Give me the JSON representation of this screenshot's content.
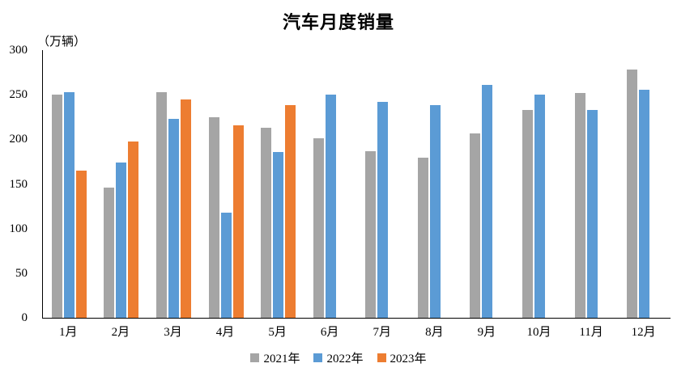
{
  "title": "汽车月度销量",
  "axis_unit_label": "（万辆）",
  "legend": [
    {
      "label": "2021年",
      "color": "#A5A5A5"
    },
    {
      "label": "2022年",
      "color": "#5B9BD5"
    },
    {
      "label": "2023年",
      "color": "#ED7D31"
    }
  ],
  "chart_data": {
    "type": "bar",
    "title": "汽车月度销量",
    "ylabel": "（万辆）",
    "xlabel": "",
    "categories": [
      "1月",
      "2月",
      "3月",
      "4月",
      "5月",
      "6月",
      "7月",
      "8月",
      "9月",
      "10月",
      "11月",
      "12月"
    ],
    "series": [
      {
        "name": "2021年",
        "color": "#A5A5A5",
        "values": [
          250.3,
          145.5,
          252.6,
          225.2,
          212.8,
          201.5,
          186.4,
          179.9,
          206.7,
          233.3,
          252.2,
          278.6
        ]
      },
      {
        "name": "2022年",
        "color": "#5B9BD5",
        "values": [
          253.1,
          173.7,
          223.4,
          118.1,
          186.2,
          250.2,
          242.0,
          238.3,
          261.0,
          250.5,
          232.8,
          255.9
        ]
      },
      {
        "name": "2023年",
        "color": "#ED7D31",
        "values": [
          164.9,
          197.6,
          245.1,
          215.9,
          238.2,
          null,
          null,
          null,
          null,
          null,
          null,
          null
        ]
      }
    ],
    "ylim": [
      0,
      300
    ],
    "yticks": [
      0,
      50,
      100,
      150,
      200,
      250,
      300
    ],
    "grid": false,
    "legend_position": "bottom",
    "axis_color": "#000000"
  }
}
